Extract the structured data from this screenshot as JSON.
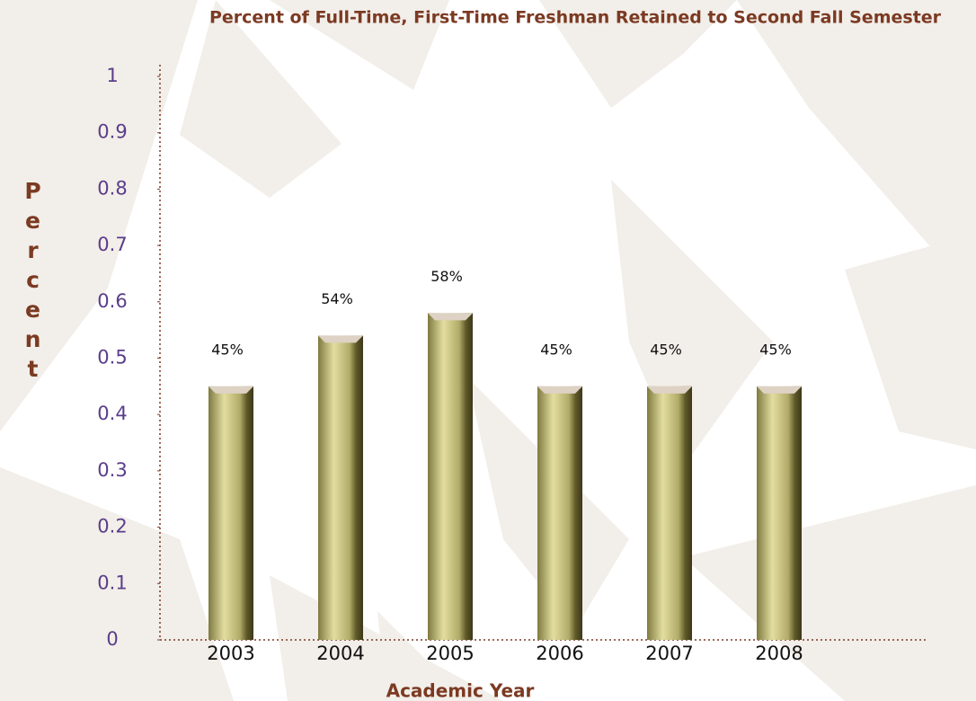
{
  "chart_data": {
    "type": "bar",
    "title": "Percent of Full-Time, First-Time Freshman Retained to Second Fall Semester",
    "x_label": "Academic Year",
    "y_label": "Percent",
    "categories": [
      "2003",
      "2004",
      "2005",
      "2006",
      "2007",
      "2008"
    ],
    "values": [
      0.45,
      0.54,
      0.58,
      0.45,
      0.45,
      0.45
    ],
    "value_labels": [
      "45%",
      "54%",
      "58%",
      "45%",
      "45%",
      "45%"
    ],
    "color": "#b8b170",
    "ylim": [
      0,
      1
    ],
    "yticks": [
      0,
      0.1,
      0.2,
      0.3,
      0.4,
      0.5,
      0.6,
      0.7,
      0.8,
      0.9,
      1
    ]
  }
}
